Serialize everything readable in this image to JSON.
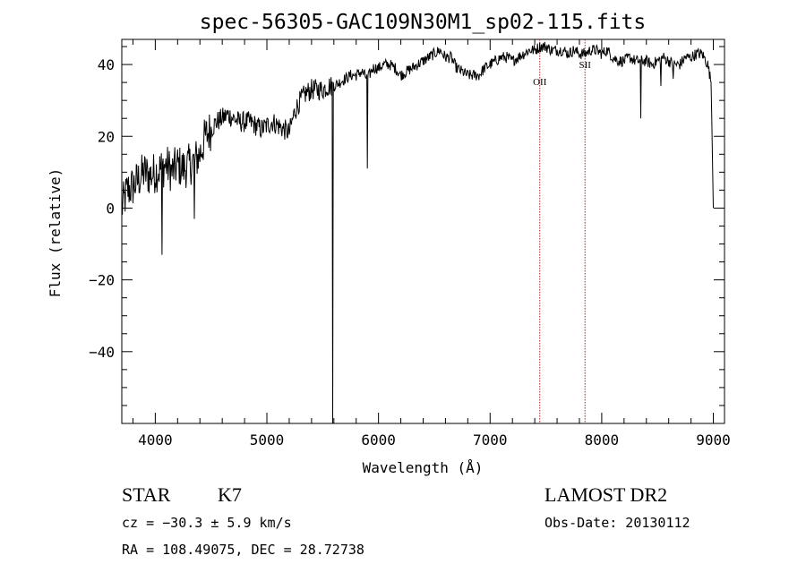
{
  "chart_data": {
    "type": "line",
    "title": "spec-56305-GAC109N30M1_sp02-115.fits",
    "xlabel": "Wavelength (Å)",
    "ylabel": "Flux (relative)",
    "xlim": [
      3700,
      9100
    ],
    "ylim": [
      -60,
      47
    ],
    "x_ticks": [
      4000,
      5000,
      6000,
      7000,
      8000,
      9000
    ],
    "y_ticks": [
      -40,
      -20,
      0,
      20,
      40
    ],
    "x_tick_labels": [
      "4000",
      "5000",
      "6000",
      "7000",
      "8000",
      "9000"
    ],
    "y_tick_labels": [
      "−40",
      "−20",
      "0",
      "20",
      "40"
    ],
    "grid": false,
    "series": [
      {
        "color": "#000000",
        "anchors": {
          "x": [
            3700,
            3750,
            3800,
            3850,
            3900,
            3950,
            4000,
            4050,
            4100,
            4150,
            4200,
            4250,
            4300,
            4350,
            4400,
            4450,
            4500,
            4550,
            4600,
            4650,
            4700,
            4750,
            4800,
            4850,
            4900,
            4950,
            5000,
            5050,
            5100,
            5150,
            5200,
            5250,
            5300,
            5350,
            5400,
            5450,
            5500,
            5550,
            5600,
            5650,
            5700,
            5750,
            5800,
            5850,
            5900,
            5950,
            6000,
            6050,
            6100,
            6150,
            6200,
            6250,
            6300,
            6350,
            6400,
            6450,
            6500,
            6550,
            6600,
            6650,
            6700,
            6750,
            6800,
            6850,
            6900,
            6950,
            7000,
            7050,
            7100,
            7150,
            7200,
            7250,
            7300,
            7350,
            7400,
            7450,
            7500,
            7550,
            7600,
            7650,
            7700,
            7750,
            7800,
            7850,
            7900,
            7950,
            8000,
            8050,
            8100,
            8150,
            8200,
            8250,
            8300,
            8350,
            8400,
            8450,
            8500,
            8550,
            8600,
            8650,
            8700,
            8750,
            8800,
            8850,
            8900,
            8950,
            8980,
            9000
          ],
          "y": [
            0,
            5,
            6,
            8,
            10,
            9,
            10,
            11,
            12,
            10,
            12,
            11,
            12,
            13,
            15,
            20,
            22,
            24,
            25,
            26,
            25,
            24,
            24,
            24,
            23,
            22,
            23,
            24,
            23,
            22,
            21,
            27,
            30,
            32,
            33,
            33,
            33,
            34,
            34,
            35,
            36,
            37,
            37,
            38,
            36,
            39,
            39,
            40,
            40,
            39,
            37,
            38,
            39,
            40,
            41,
            42,
            43,
            44,
            42,
            42,
            39,
            38,
            37,
            37,
            37,
            39,
            40,
            41,
            42,
            42,
            41,
            42,
            43,
            44,
            44,
            45,
            45,
            44,
            44,
            44,
            43,
            44,
            43,
            43,
            44,
            44,
            43,
            44,
            42,
            41,
            41,
            42,
            41,
            41,
            41,
            40,
            41,
            42,
            41,
            40,
            40,
            42,
            42,
            43,
            43,
            40,
            35,
            0
          ]
        },
        "spikes": [
          {
            "x": 4060,
            "y": -13
          },
          {
            "x": 4350,
            "y": -3
          },
          {
            "x": 5590,
            "y": -60
          },
          {
            "x": 5900,
            "y": 11
          },
          {
            "x": 8350,
            "y": 25
          },
          {
            "x": 8530,
            "y": 34
          },
          {
            "x": 8640,
            "y": 36
          }
        ]
      }
    ],
    "reference_lines": [
      {
        "x": 7445,
        "label": "OII",
        "color": "#b22222"
      },
      {
        "x": 7850,
        "label": "SII",
        "color": "#b22222"
      }
    ]
  },
  "info": {
    "class_label": "STAR",
    "subclass_label": "K7",
    "velocity_text": "cz = −30.3 ± 5.9 km/s",
    "coords_text": "RA = 108.49075, DEC =  28.72738",
    "survey_label": "LAMOST DR2",
    "obs_date_text": "Obs-Date: 20130112"
  }
}
